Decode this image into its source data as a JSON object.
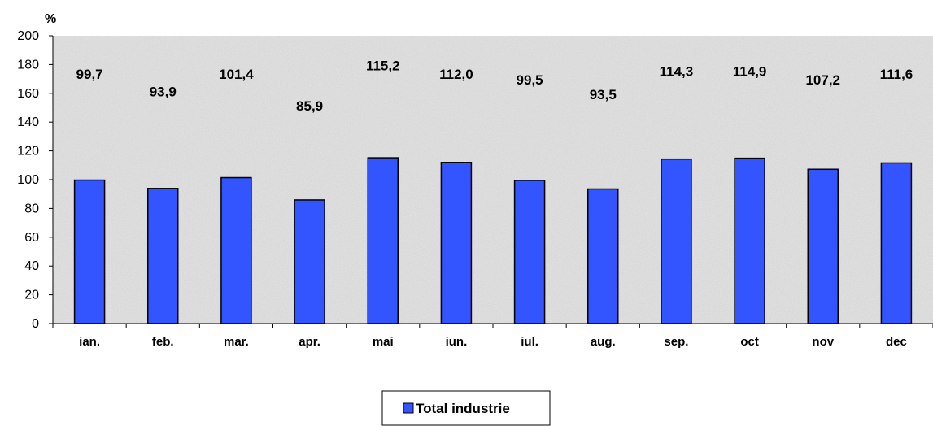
{
  "chart_data": {
    "type": "bar",
    "ylabel": "%",
    "ylim": [
      0,
      200
    ],
    "ytick_step": 20,
    "grid": false,
    "legend_position": "bottom-center",
    "categories": [
      "ian.",
      "feb.",
      "mar.",
      "apr.",
      "mai",
      "iun.",
      "iul.",
      "aug.",
      "sep.",
      "oct",
      "nov",
      "dec"
    ],
    "series": [
      {
        "name": "Total industrie",
        "color": "#3355ff",
        "values": [
          99.7,
          93.9,
          101.4,
          85.9,
          115.2,
          112.0,
          99.5,
          93.5,
          114.3,
          114.9,
          107.2,
          111.6
        ],
        "labels": [
          "99,7",
          "93,9",
          "101,4",
          "85,9",
          "115,2",
          "112,0",
          "99,5",
          "93,5",
          "114,3",
          "114,9",
          "107,2",
          "111,6"
        ]
      }
    ],
    "plot_background": "#e4e4e4"
  }
}
